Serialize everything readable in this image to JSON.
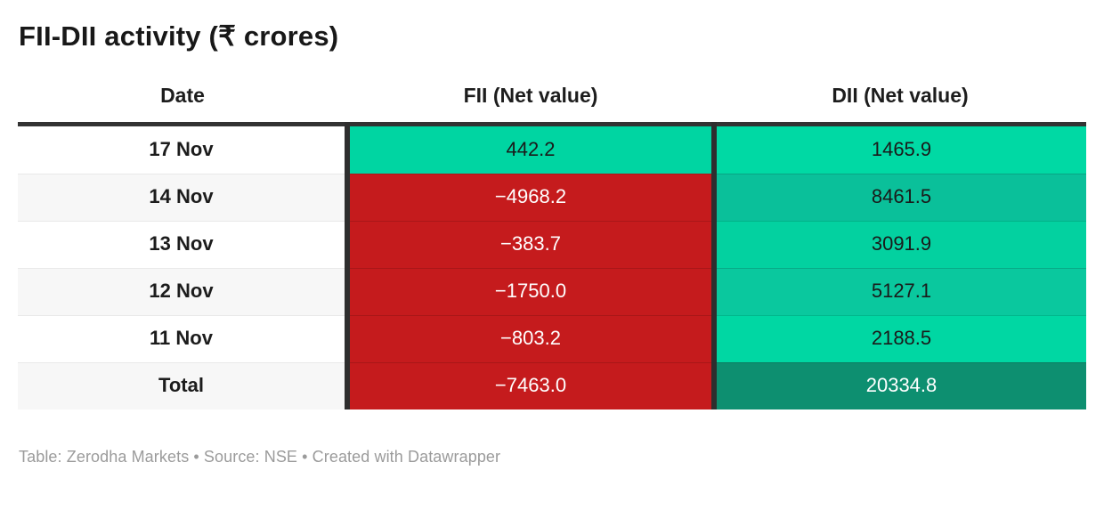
{
  "title": "FII-DII activity (₹ crores)",
  "footer": "Table: Zerodha Markets • Source: NSE • Created with Datawrapper",
  "colors": {
    "positive_green": "#00d5a2",
    "negative_red": "#c51b1d",
    "total_dark_green": "#0d8f70",
    "header_border": "#333333",
    "column_divider": "#2e2e2e",
    "alt_row_bg": "#f7f7f7",
    "footer_text": "#9b9b9b"
  },
  "table": {
    "columns": [
      "Date",
      "FII (Net value)",
      "DII (Net value)"
    ],
    "rows": [
      {
        "date": "17 Nov",
        "fii": "442.2",
        "fii_bg": "#00d5a2",
        "fii_fg": "#1a1a1a",
        "dii": "1465.9",
        "dii_bg": "#00d9a4",
        "dii_fg": "#1a1a1a"
      },
      {
        "date": "14 Nov",
        "fii": "−4968.2",
        "fii_bg": "#c51b1d",
        "fii_fg": "#ffffff",
        "dii": "8461.5",
        "dii_bg": "#0ac09a",
        "dii_fg": "#1a1a1a"
      },
      {
        "date": "13 Nov",
        "fii": "−383.7",
        "fii_bg": "#c51b1d",
        "fii_fg": "#ffffff",
        "dii": "3091.9",
        "dii_bg": "#03d1a0",
        "dii_fg": "#1a1a1a"
      },
      {
        "date": "12 Nov",
        "fii": "−1750.0",
        "fii_bg": "#c51b1d",
        "fii_fg": "#ffffff",
        "dii": "5127.1",
        "dii_bg": "#0ac89e",
        "dii_fg": "#1a1a1a"
      },
      {
        "date": "11 Nov",
        "fii": "−803.2",
        "fii_bg": "#c51b1d",
        "fii_fg": "#ffffff",
        "dii": "2188.5",
        "dii_bg": "#00d7a3",
        "dii_fg": "#1a1a1a"
      },
      {
        "date": "Total",
        "fii": "−7463.0",
        "fii_bg": "#c51b1d",
        "fii_fg": "#ffffff",
        "dii": "20334.8",
        "dii_bg": "#0d8f70",
        "dii_fg": "#ffffff"
      }
    ]
  },
  "chart_data": {
    "type": "table",
    "title": "FII-DII activity (₹ crores)",
    "columns": [
      "Date",
      "FII (Net value)",
      "DII (Net value)"
    ],
    "rows": [
      [
        "17 Nov",
        442.2,
        1465.9
      ],
      [
        "14 Nov",
        -4968.2,
        8461.5
      ],
      [
        "13 Nov",
        -383.7,
        3091.9
      ],
      [
        "12 Nov",
        -1750.0,
        5127.1
      ],
      [
        "11 Nov",
        -803.2,
        2188.5
      ],
      [
        "Total",
        -7463.0,
        20334.8
      ]
    ],
    "heatmap": "cell backgrounds encode value: red for negative FII, green ramp (light to dark) for positive DII magnitude",
    "source": "NSE",
    "attribution": "Zerodha Markets",
    "tool": "Datawrapper"
  }
}
